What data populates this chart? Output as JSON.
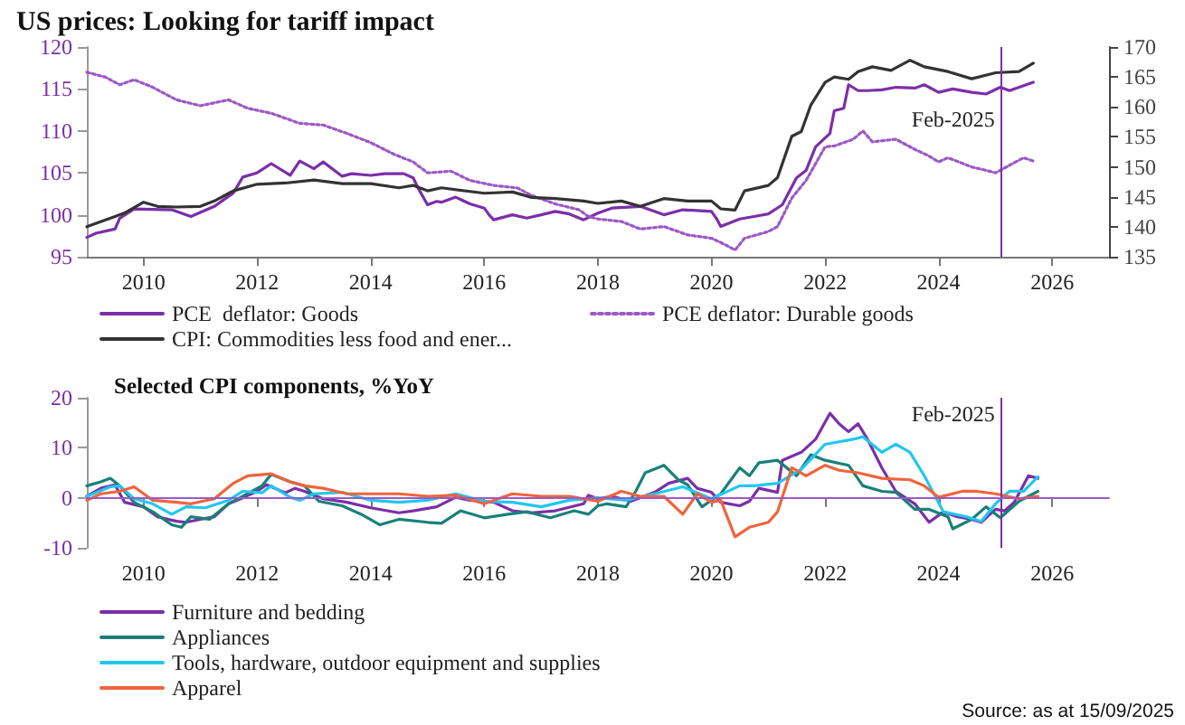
{
  "chart_data": [
    {
      "type": "line",
      "title": "US prices: Looking for tariff impact",
      "xlim": [
        "2009-01",
        "2027-01"
      ],
      "xticks": [
        "2010",
        "2012",
        "2014",
        "2016",
        "2018",
        "2020",
        "2022",
        "2024",
        "2026"
      ],
      "ylim": [
        95,
        120
      ],
      "yticks": [
        95,
        100,
        105,
        110,
        115,
        120
      ],
      "y2lim": [
        135,
        170
      ],
      "y2ticks": [
        135,
        140,
        145,
        150,
        155,
        160,
        165,
        170
      ],
      "grid": false,
      "legend": "bottom",
      "marker": "none",
      "line_style": "solid",
      "ref_lines": [
        {
          "axis": "x",
          "value": "2025-02",
          "label": "Feb-2025",
          "color": "#7b2fa8"
        }
      ],
      "series": [
        {
          "name": "PCE  deflator: Goods",
          "color": "#7b2fa8",
          "x": [
            "2009-01",
            "2009-03",
            "2009-07",
            "2009-08",
            "2009-11",
            "2010-07",
            "2010-11",
            "2011-04",
            "2011-08",
            "2011-10",
            "2012-01",
            "2012-04",
            "2012-08",
            "2012-10",
            "2013-01",
            "2013-03",
            "2013-07",
            "2013-09",
            "2014-01",
            "2014-04",
            "2014-08",
            "2014-10",
            "2014-11",
            "2015-01",
            "2015-03",
            "2015-04",
            "2015-07",
            "2015-10",
            "2016-01",
            "2016-02",
            "2016-03",
            "2016-07",
            "2016-10",
            "2017-01",
            "2017-04",
            "2017-07",
            "2017-10",
            "2018-01",
            "2018-04",
            "2018-10",
            "2019-03",
            "2019-07",
            "2020-01",
            "2020-02",
            "2020-03",
            "2020-07",
            "2020-10",
            "2021-01",
            "2021-04",
            "2021-07",
            "2021-09",
            "2021-11",
            "2022-02",
            "2022-03",
            "2022-05",
            "2022-06",
            "2022-08",
            "2022-10",
            "2023-01",
            "2023-04",
            "2023-08",
            "2023-10",
            "2024-01",
            "2024-04",
            "2024-08",
            "2024-11",
            "2025-02",
            "2025-04",
            "2025-07",
            "2025-09"
          ],
          "values": [
            97.3,
            97.8,
            98.3,
            99.6,
            100.7,
            100.6,
            99.8,
            101,
            102.6,
            104.5,
            105,
            106.1,
            104.7,
            106.4,
            105.5,
            106.3,
            104.6,
            104.9,
            104.7,
            104.9,
            104.9,
            104.4,
            103.2,
            101.2,
            101.6,
            101.5,
            102.1,
            101.3,
            100.8,
            100,
            99.4,
            100,
            99.6,
            100,
            100.4,
            100.1,
            99.4,
            100.2,
            100.8,
            101,
            100,
            100.6,
            100.4,
            99.6,
            98.6,
            99.5,
            99.8,
            100.1,
            101.2,
            104.4,
            105.3,
            108.1,
            109.7,
            112.4,
            112.7,
            115.5,
            114.8,
            114.8,
            114.9,
            115.2,
            115.1,
            115.5,
            114.6,
            115,
            114.6,
            114.4,
            115.2,
            114.8,
            115.4,
            115.8
          ]
        },
        {
          "name": "PCE deflator: Durable goods",
          "color": "#9b59c6",
          "line_style": "dotted",
          "x": [
            "2009-01",
            "2009-05",
            "2009-08",
            "2009-11",
            "2010-03",
            "2010-08",
            "2011-01",
            "2011-07",
            "2011-11",
            "2012-04",
            "2012-10",
            "2013-03",
            "2013-08",
            "2014-01",
            "2014-06",
            "2014-10",
            "2015-01",
            "2015-06",
            "2015-10",
            "2016-03",
            "2016-08",
            "2016-11",
            "2017-04",
            "2017-09",
            "2017-11",
            "2018-01",
            "2018-06",
            "2018-10",
            "2019-03",
            "2019-08",
            "2020-01",
            "2020-03",
            "2020-06",
            "2020-08",
            "2021-01",
            "2021-03",
            "2021-06",
            "2021-09",
            "2022-01",
            "2022-03",
            "2022-07",
            "2022-09",
            "2022-11",
            "2023-04",
            "2023-08",
            "2023-11",
            "2024-01",
            "2024-03",
            "2024-08",
            "2024-11",
            "2025-01",
            "2025-04",
            "2025-07",
            "2025-09"
          ],
          "values": [
            117,
            116.4,
            115.5,
            116.1,
            115.2,
            113.7,
            113,
            113.7,
            112.7,
            112.1,
            110.9,
            110.7,
            109.7,
            108.6,
            107.2,
            106.3,
            105,
            105.2,
            104.1,
            103.5,
            103.2,
            102.3,
            101.3,
            100.6,
            99.8,
            99.5,
            99.2,
            98.3,
            98.6,
            97.6,
            97.2,
            96.7,
            95.8,
            97.2,
            98,
            98.6,
            102,
            104.1,
            108.1,
            108.2,
            109,
            110,
            108.7,
            109,
            107.8,
            107,
            106.3,
            106.8,
            105.7,
            105.3,
            105,
            105.9,
            106.8,
            106.4
          ]
        },
        {
          "name": "CPI: Commodities less food and ener...",
          "color": "#333333",
          "axis": "y2",
          "x": [
            "2009-01",
            "2009-07",
            "2009-09",
            "2010-01",
            "2010-04",
            "2010-08",
            "2011-01",
            "2011-04",
            "2011-08",
            "2012-01",
            "2012-07",
            "2013-01",
            "2013-07",
            "2014-01",
            "2014-07",
            "2014-10",
            "2015-01",
            "2015-04",
            "2016-01",
            "2016-07",
            "2016-11",
            "2017-04",
            "2017-10",
            "2018-01",
            "2018-06",
            "2018-10",
            "2019-03",
            "2019-08",
            "2020-01",
            "2020-03",
            "2020-06",
            "2020-08",
            "2021-01",
            "2021-03",
            "2021-06",
            "2021-08",
            "2021-10",
            "2022-01",
            "2022-03",
            "2022-06",
            "2022-08",
            "2022-11",
            "2023-03",
            "2023-07",
            "2023-10",
            "2024-03",
            "2024-08",
            "2025-01",
            "2025-06",
            "2025-09"
          ],
          "values": [
            140,
            141.7,
            142.3,
            144.1,
            143.4,
            143.3,
            143.4,
            144.3,
            146,
            147.1,
            147.3,
            147.8,
            147.2,
            147.2,
            146.5,
            146.9,
            146,
            146.5,
            145.6,
            145.8,
            144.9,
            144.7,
            144.3,
            143.9,
            144.3,
            143.4,
            144.7,
            144.3,
            144.3,
            143,
            142.8,
            146,
            146.9,
            148.2,
            155.1,
            155.9,
            160.3,
            164.1,
            165,
            164.6,
            165.9,
            166.7,
            166.1,
            167.8,
            166.7,
            165.9,
            164.7,
            165.7,
            165.9,
            167.3
          ]
        }
      ]
    },
    {
      "type": "line",
      "title": "Selected CPI components, %YoY",
      "xlim": [
        "2009-01",
        "2027-01"
      ],
      "xticks": [
        "2010",
        "2012",
        "2014",
        "2016",
        "2018",
        "2020",
        "2022",
        "2024",
        "2026"
      ],
      "ylim": [
        -10,
        20
      ],
      "yticks": [
        -10,
        0,
        10,
        20
      ],
      "grid": false,
      "legend": "bottom",
      "marker": "none",
      "line_style": "solid",
      "ref_lines": [
        {
          "axis": "x",
          "value": "2025-02",
          "label": "Feb-2025",
          "color": "#7b2fa8"
        },
        {
          "axis": "y",
          "value": 0,
          "label": null,
          "color": "#9b59c6"
        }
      ],
      "annotations": [
        "Source: as at 15/09/2025"
      ],
      "series": [
        {
          "name": "Furniture and bedding",
          "color": "#7b2fa8",
          "x": [
            "2009-01",
            "2009-04",
            "2009-07",
            "2009-09",
            "2010-01",
            "2010-04",
            "2010-08",
            "2010-10",
            "2011-01",
            "2011-04",
            "2011-07",
            "2011-10",
            "2012-01",
            "2012-03",
            "2012-07",
            "2012-09",
            "2012-11",
            "2013-03",
            "2013-08",
            "2014-01",
            "2014-07",
            "2014-10",
            "2015-03",
            "2015-07",
            "2015-10",
            "2016-03",
            "2016-07",
            "2016-11",
            "2017-04",
            "2017-10",
            "2017-11",
            "2018-01",
            "2018-04",
            "2018-08",
            "2019-01",
            "2019-04",
            "2019-08",
            "2019-10",
            "2020-01",
            "2020-03",
            "2020-07",
            "2020-09",
            "2020-11",
            "2021-03",
            "2021-04",
            "2021-08",
            "2021-11",
            "2022-02",
            "2022-04",
            "2022-06",
            "2022-08",
            "2022-10",
            "2023-01",
            "2023-04",
            "2023-08",
            "2023-11",
            "2024-02",
            "2024-05",
            "2024-08",
            "2024-10",
            "2025-01",
            "2025-03",
            "2025-05",
            "2025-08",
            "2025-10"
          ],
          "values": [
            0.3,
            1.9,
            2.6,
            -0.9,
            -1.8,
            -3.8,
            -4.7,
            -4.9,
            -4.3,
            -3.8,
            -1.2,
            0,
            1.3,
            2.6,
            1,
            1.9,
            1.3,
            -0.2,
            -0.9,
            -2,
            -3,
            -2.6,
            -1.8,
            0.1,
            -0.5,
            -0.9,
            -2.6,
            -3,
            -2.6,
            -1.2,
            0.5,
            -0.2,
            0.3,
            -0.7,
            1.1,
            2.9,
            3.9,
            1.9,
            1.1,
            -0.9,
            -1.6,
            -0.7,
            1.9,
            1.1,
            7.5,
            9.1,
            11.7,
            16.9,
            14.8,
            13.2,
            14.8,
            11.7,
            6,
            1.3,
            -1.2,
            -4.9,
            -2.8,
            -3.8,
            -4.3,
            -4.9,
            -2.3,
            -2.6,
            -0.9,
            4.4,
            3.9
          ]
        },
        {
          "name": "Appliances",
          "color": "#1a8078",
          "x": [
            "2009-01",
            "2009-04",
            "2009-06",
            "2009-08",
            "2009-11",
            "2010-03",
            "2010-07",
            "2010-09",
            "2010-11",
            "2011-03",
            "2011-07",
            "2011-10",
            "2012-02",
            "2012-04",
            "2012-08",
            "2012-11",
            "2013-02",
            "2013-07",
            "2013-11",
            "2014-03",
            "2014-07",
            "2015-01",
            "2015-04",
            "2015-08",
            "2016-01",
            "2016-06",
            "2016-10",
            "2017-03",
            "2017-08",
            "2017-11",
            "2018-01",
            "2018-03",
            "2018-07",
            "2018-09",
            "2018-11",
            "2019-03",
            "2019-06",
            "2019-08",
            "2019-11",
            "2020-03",
            "2020-07",
            "2020-09",
            "2020-11",
            "2021-03",
            "2021-07",
            "2021-10",
            "2022-01",
            "2022-06",
            "2022-09",
            "2023-01",
            "2023-04",
            "2023-08",
            "2023-11",
            "2024-03",
            "2024-04",
            "2024-08",
            "2024-11",
            "2025-02",
            "2025-06",
            "2025-10"
          ],
          "values": [
            2.4,
            3.2,
            3.9,
            2.4,
            -0.9,
            -2.8,
            -5.4,
            -5.9,
            -3.8,
            -4.3,
            -1.2,
            0.3,
            2.4,
            4.7,
            3.2,
            2.4,
            -0.7,
            -1.6,
            -3.3,
            -5.4,
            -4.3,
            -4.9,
            -5.1,
            -2.6,
            -4,
            -3.3,
            -2.8,
            -4,
            -2.6,
            -3.3,
            -1.6,
            -1.2,
            -1.8,
            1.3,
            5,
            6.5,
            3.6,
            2.6,
            -1.8,
            0.8,
            6,
            4.4,
            7,
            7.5,
            4.4,
            8.6,
            7.5,
            6.5,
            2.4,
            1.3,
            1.1,
            -2.3,
            -2.3,
            -3.8,
            -6.2,
            -4.3,
            -1.8,
            -4,
            -0.7,
            1.3
          ]
        },
        {
          "name": "Tools, hardware, outdoor equipment and supplies",
          "color": "#22c7f0",
          "x": [
            "2009-01",
            "2009-06",
            "2009-08",
            "2009-11",
            "2010-03",
            "2010-07",
            "2010-10",
            "2011-02",
            "2011-07",
            "2011-10",
            "2012-02",
            "2012-04",
            "2012-08",
            "2012-10",
            "2013-01",
            "2013-07",
            "2014-01",
            "2014-07",
            "2015-01",
            "2015-07",
            "2016-01",
            "2016-07",
            "2017-01",
            "2017-07",
            "2018-01",
            "2018-07",
            "2019-01",
            "2019-07",
            "2020-01",
            "2020-07",
            "2020-10",
            "2021-03",
            "2021-08",
            "2022-01",
            "2022-07",
            "2022-09",
            "2023-01",
            "2023-04",
            "2023-07",
            "2023-10",
            "2024-02",
            "2024-07",
            "2024-10",
            "2025-01",
            "2025-04",
            "2025-07",
            "2025-10"
          ],
          "values": [
            0.3,
            2.2,
            2.4,
            -0.2,
            -1.2,
            -3.3,
            -1.8,
            -2,
            -0.5,
            1.3,
            1,
            2.4,
            0.1,
            -0.5,
            0.8,
            1.1,
            -0.5,
            -0.9,
            -0.5,
            0.8,
            -0.7,
            -0.9,
            -1.8,
            -0.5,
            0,
            -0.5,
            0.8,
            2.2,
            -0.2,
            2.4,
            2.4,
            2.9,
            5.7,
            10.7,
            11.7,
            12.2,
            9.1,
            10.7,
            9.1,
            4.4,
            -2.8,
            -3.8,
            -4.7,
            -1.2,
            1.3,
            1.3,
            4.2
          ]
        },
        {
          "name": "Apparel",
          "color": "#f0643c",
          "x": [
            "2009-01",
            "2009-04",
            "2009-08",
            "2009-11",
            "2010-03",
            "2010-08",
            "2010-11",
            "2011-04",
            "2011-08",
            "2011-11",
            "2012-04",
            "2012-08",
            "2012-11",
            "2013-03",
            "2013-08",
            "2014-01",
            "2014-07",
            "2015-01",
            "2015-07",
            "2016-01",
            "2016-07",
            "2017-01",
            "2017-07",
            "2018-01",
            "2018-06",
            "2018-10",
            "2019-03",
            "2019-07",
            "2019-10",
            "2020-01",
            "2020-03",
            "2020-06",
            "2020-09",
            "2021-01",
            "2021-03",
            "2021-06",
            "2021-09",
            "2022-01",
            "2022-04",
            "2022-08",
            "2023-01",
            "2023-07",
            "2023-10",
            "2024-01",
            "2024-06",
            "2024-09",
            "2025-01",
            "2025-06",
            "2025-10"
          ],
          "values": [
            -0.5,
            0.8,
            1.3,
            2.2,
            -0.5,
            -0.9,
            -1.2,
            -0.2,
            2.9,
            4.4,
            4.8,
            3.2,
            2.4,
            1.9,
            0.8,
            0.8,
            0.8,
            0.3,
            0.5,
            -1.2,
            0.8,
            0.3,
            0.3,
            -0.7,
            1.3,
            0.3,
            0.3,
            -3.3,
            0.8,
            -0.9,
            -0.5,
            -7.8,
            -5.9,
            -4.9,
            -2.8,
            6,
            4.4,
            6.5,
            5.5,
            5,
            3.9,
            3.6,
            2.4,
            0.1,
            1.3,
            1.3,
            0.8,
            -0.2,
            0.3
          ]
        }
      ]
    }
  ]
}
